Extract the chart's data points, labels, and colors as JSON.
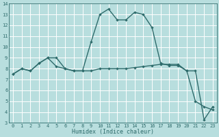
{
  "xlabel": "Humidex (Indice chaleur)",
  "xlim": [
    -0.5,
    23.5
  ],
  "ylim": [
    3,
    14
  ],
  "xticks": [
    0,
    1,
    2,
    3,
    4,
    5,
    6,
    7,
    8,
    9,
    10,
    11,
    12,
    13,
    14,
    15,
    16,
    17,
    18,
    19,
    20,
    21,
    22,
    23
  ],
  "yticks": [
    3,
    4,
    5,
    6,
    7,
    8,
    9,
    10,
    11,
    12,
    13,
    14
  ],
  "line1_x": [
    0,
    1,
    2,
    3,
    4,
    5,
    6,
    7,
    8,
    9,
    10,
    11,
    12,
    13,
    14,
    15,
    16,
    17,
    18,
    19,
    20,
    21,
    22,
    23
  ],
  "line1_y": [
    7.5,
    8.0,
    7.8,
    8.5,
    9.0,
    9.0,
    8.0,
    7.8,
    7.8,
    10.5,
    13.0,
    13.5,
    12.5,
    12.5,
    13.2,
    13.0,
    11.8,
    8.5,
    8.3,
    8.3,
    7.8,
    7.8,
    3.3,
    4.5
  ],
  "line2_x": [
    0,
    1,
    2,
    3,
    4,
    5,
    6,
    7,
    8,
    9,
    10,
    11,
    12,
    13,
    14,
    15,
    16,
    17,
    18,
    19,
    20,
    21,
    22,
    23
  ],
  "line2_y": [
    7.5,
    8.0,
    7.8,
    8.5,
    9.0,
    8.2,
    8.0,
    7.8,
    7.8,
    7.8,
    8.0,
    8.0,
    8.0,
    8.0,
    8.1,
    8.2,
    8.3,
    8.4,
    8.4,
    8.4,
    7.8,
    5.0,
    4.5,
    4.2
  ],
  "line_color": "#2e6b6b",
  "bg_color": "#b8dede",
  "grid_color": "#ffffff",
  "marker": "D",
  "marker_size": 2.2,
  "linewidth": 1.0,
  "tick_fontsize": 5.0,
  "xlabel_fontsize": 6.0,
  "tick_color": "#2e6b6b",
  "spine_color": "#2e6b6b"
}
